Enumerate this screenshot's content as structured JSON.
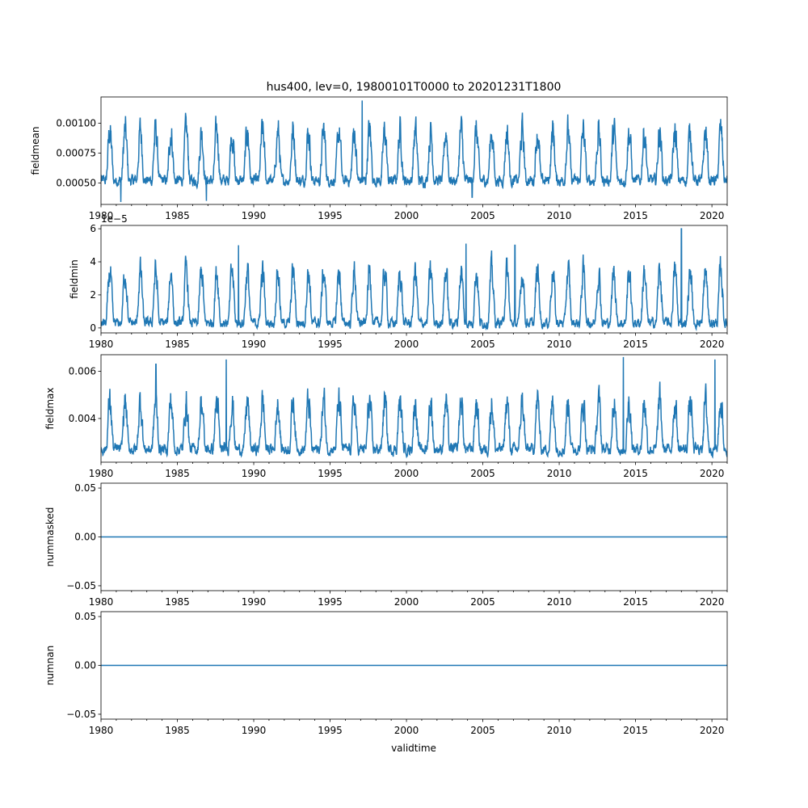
{
  "figure": {
    "title": "hus400, lev=0, 19800101T0000 to 20201231T1800",
    "xlabel": "validtime"
  },
  "colors": {
    "series": "#1f77b4",
    "axes": "#000000",
    "background": "#ffffff"
  },
  "chart_data": [
    {
      "type": "line",
      "title": "hus400, lev=0, 19800101T0000 to 20201231T1800",
      "ylabel": "fieldmean",
      "xlim": [
        1980,
        2021
      ],
      "ylim": [
        0.00032,
        0.00122
      ],
      "x_ticks": [
        "1980",
        "1985",
        "1990",
        "1995",
        "2000",
        "2005",
        "2010",
        "2015",
        "2020"
      ],
      "y_ticks": [
        "0.00050",
        "0.00075",
        "0.00100"
      ],
      "y_tick_values": [
        0.0005,
        0.00075,
        0.001
      ],
      "offset_text": "",
      "series": [
        {
          "annual_low": 0.00052,
          "annual_high": 0.00093,
          "noise": 7e-05,
          "peaks": [
            [
              1997.1,
              0.00119
            ],
            [
              1981.3,
              0.00034
            ],
            [
              1986.9,
              0.00035
            ],
            [
              2004.3,
              0.00038
            ]
          ]
        }
      ]
    },
    {
      "type": "line",
      "ylabel": "fieldmin",
      "xlim": [
        1980,
        2021
      ],
      "ylim": [
        -0.3,
        6.2
      ],
      "x_ticks": [
        "1980",
        "1985",
        "1990",
        "1995",
        "2000",
        "2005",
        "2010",
        "2015",
        "2020"
      ],
      "y_ticks": [
        "0",
        "2",
        "4",
        "6"
      ],
      "y_tick_values": [
        0,
        2,
        4,
        6
      ],
      "offset_text": "1e−5",
      "series": [
        {
          "annual_low": 0.3,
          "annual_high": 3.4,
          "noise": 0.45,
          "peaks": [
            [
              1989.0,
              5.0
            ],
            [
              2003.9,
              5.1
            ],
            [
              2007.1,
              5.0
            ],
            [
              2018.0,
              6.0
            ]
          ]
        }
      ]
    },
    {
      "type": "line",
      "ylabel": "fieldmax",
      "xlim": [
        1980,
        2021
      ],
      "ylim": [
        0.00215,
        0.0067
      ],
      "x_ticks": [
        "1980",
        "1985",
        "1990",
        "1995",
        "2000",
        "2005",
        "2010",
        "2015",
        "2020"
      ],
      "y_ticks": [
        "0.004",
        "0.006"
      ],
      "y_tick_values": [
        0.004,
        0.006
      ],
      "offset_text": "",
      "series": [
        {
          "annual_low": 0.0027,
          "annual_high": 0.0047,
          "noise": 0.00035,
          "peaks": [
            [
              1988.2,
              0.0065
            ],
            [
              2014.2,
              0.0066
            ],
            [
              2020.2,
              0.0065
            ],
            [
              1983.6,
              0.0063
            ]
          ]
        }
      ]
    },
    {
      "type": "line",
      "ylabel": "nummasked",
      "xlim": [
        1980,
        2021
      ],
      "ylim": [
        -0.055,
        0.055
      ],
      "x_ticks": [
        "1980",
        "1985",
        "1990",
        "1995",
        "2000",
        "2005",
        "2010",
        "2015",
        "2020"
      ],
      "y_ticks": [
        "−0.05",
        "0.00",
        "0.05"
      ],
      "y_tick_values": [
        -0.05,
        0,
        0.05
      ],
      "offset_text": "",
      "series": [
        {
          "constant": 0.0
        }
      ]
    },
    {
      "type": "line",
      "ylabel": "numnan",
      "xlim": [
        1980,
        2021
      ],
      "ylim": [
        -0.055,
        0.055
      ],
      "x_ticks": [
        "1980",
        "1985",
        "1990",
        "1995",
        "2000",
        "2005",
        "2010",
        "2015",
        "2020"
      ],
      "y_ticks": [
        "−0.05",
        "0.00",
        "0.05"
      ],
      "y_tick_values": [
        -0.05,
        0,
        0.05
      ],
      "offset_text": "",
      "series": [
        {
          "constant": 0.0
        }
      ]
    }
  ]
}
